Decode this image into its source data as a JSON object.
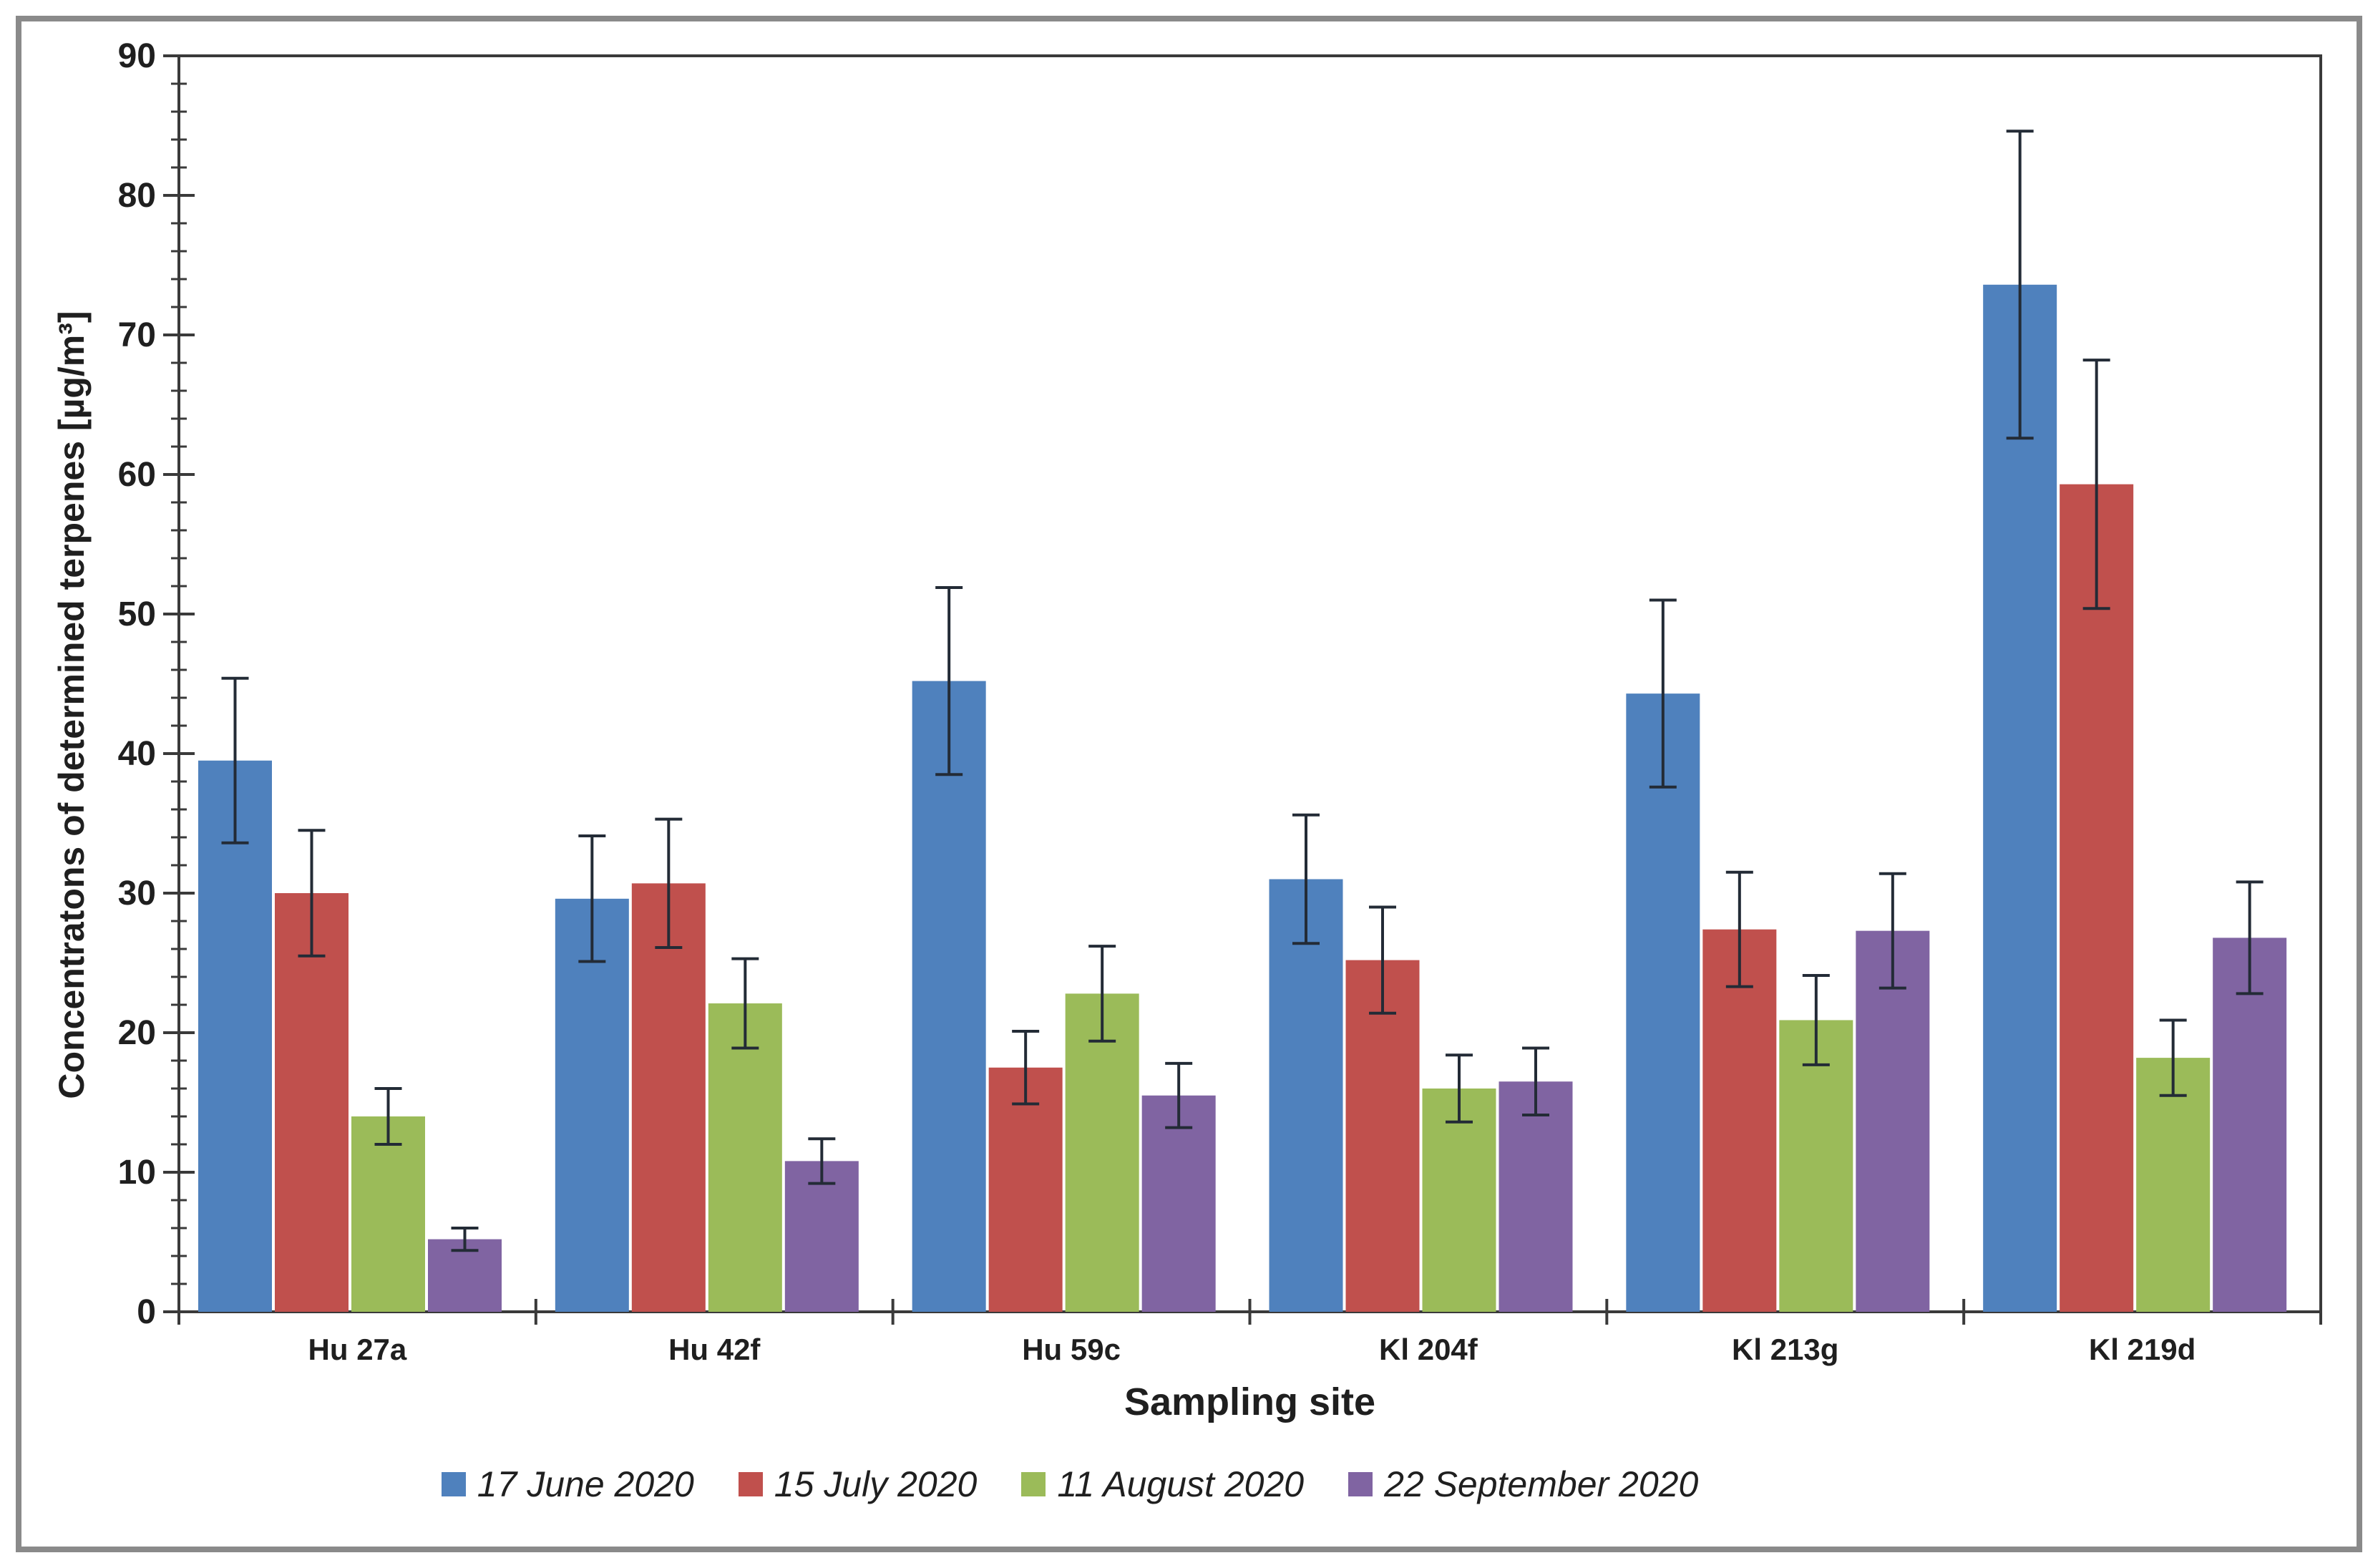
{
  "chart_data": {
    "type": "bar",
    "title": "",
    "categories": [
      "Hu 27a",
      "Hu 42f",
      "Hu 59c",
      "Kl 204f",
      "Kl 213g",
      "Kl 219d"
    ],
    "series": [
      {
        "name": "17 June 2020",
        "color": "#4F81BD",
        "values": [
          39.5,
          29.6,
          45.2,
          31.0,
          44.3,
          73.6
        ],
        "errors": [
          5.9,
          4.5,
          6.7,
          4.6,
          6.7,
          11.0
        ]
      },
      {
        "name": "15 July 2020",
        "color": "#C0504D",
        "values": [
          30.0,
          30.7,
          17.5,
          25.2,
          27.4,
          59.3
        ],
        "errors": [
          4.5,
          4.6,
          2.6,
          3.8,
          4.1,
          8.9
        ]
      },
      {
        "name": "11 August 2020",
        "color": "#9BBB59",
        "values": [
          14.0,
          22.1,
          22.8,
          16.0,
          20.9,
          18.2
        ],
        "errors": [
          2.0,
          3.2,
          3.4,
          2.4,
          3.2,
          2.7
        ]
      },
      {
        "name": "22 September 2020",
        "color": "#8064A2",
        "values": [
          5.2,
          10.8,
          15.5,
          16.5,
          27.3,
          26.8
        ],
        "errors": [
          0.8,
          1.6,
          2.3,
          2.4,
          4.1,
          4.0
        ]
      }
    ],
    "xlabel": "Sampling site",
    "ylabel": "Concentratons of determined terpenes  [µg/m³]",
    "ylim": [
      0,
      90
    ],
    "y_major_tick": 10,
    "y_minor_tick": 2,
    "y_tick_labels": [
      "0",
      "10",
      "20",
      "30",
      "40",
      "50",
      "60",
      "70",
      "80",
      "90"
    ],
    "grid": "off",
    "legend_position": "bottom",
    "error_bars": true,
    "error_bar_color": "#232B36",
    "axis_color": "#3A3A3A",
    "frame_border_color": "#8A8A8A",
    "text_color": "#1F1F1F"
  }
}
